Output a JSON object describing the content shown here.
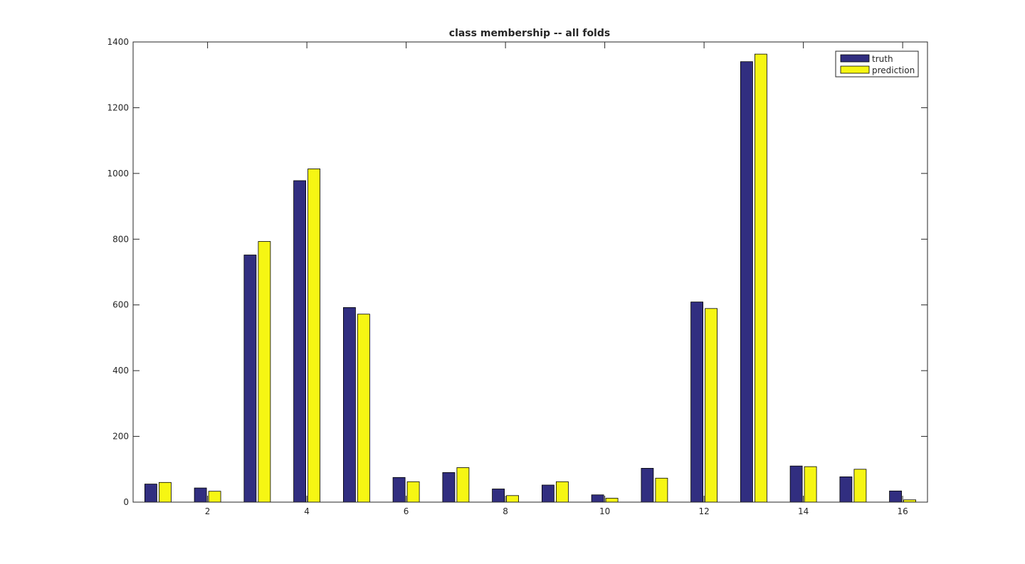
{
  "chart_data": {
    "type": "bar",
    "title": "class membership -- all folds",
    "xlabel": "",
    "ylabel": "",
    "categories": [
      1,
      2,
      3,
      4,
      5,
      6,
      7,
      8,
      9,
      10,
      11,
      12,
      13,
      14,
      15,
      16
    ],
    "x_tick_labels": [
      "2",
      "4",
      "6",
      "8",
      "10",
      "12",
      "14",
      "16"
    ],
    "y_tick_labels": [
      "0",
      "200",
      "400",
      "600",
      "800",
      "1000",
      "1200",
      "1400"
    ],
    "ylim": [
      0,
      1400
    ],
    "xlim": [
      0.5,
      16.5
    ],
    "grid": false,
    "legend_position": "top-right",
    "series": [
      {
        "name": "truth",
        "color": "#312e80",
        "values": [
          55,
          43,
          752,
          978,
          592,
          75,
          90,
          40,
          52,
          22,
          103,
          609,
          1340,
          110,
          77,
          34
        ]
      },
      {
        "name": "prediction",
        "color": "#f6f613",
        "values": [
          60,
          33,
          793,
          1014,
          572,
          62,
          105,
          20,
          62,
          12,
          73,
          589,
          1363,
          108,
          100,
          7
        ]
      }
    ]
  }
}
